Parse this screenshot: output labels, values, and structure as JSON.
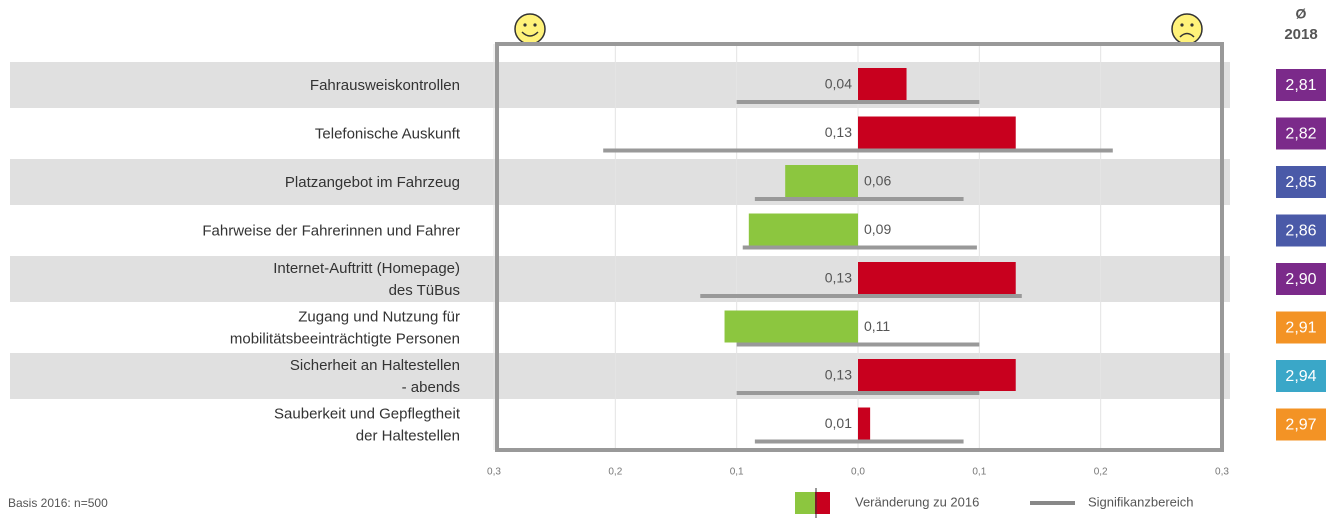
{
  "chart_data": {
    "type": "diverging_bar",
    "categories": [
      "Fahrausweiskontrollen",
      "Telefonische Auskunft",
      "Platzangebot im Fahrzeug",
      "Fahrweise der Fahrerinnen und Fahrer",
      "Internet-Auftritt (Homepage)\ndes TüBus",
      "Zugang und Nutzung für\nmobilitätsbeeinträchtigte Personen",
      "Sicherheit an Haltestellen\n- abends",
      "Sauberkeit und Gepflegtheit\nder Haltestellen"
    ],
    "values": [
      0.04,
      0.13,
      -0.06,
      -0.09,
      0.13,
      -0.11,
      0.13,
      0.01
    ],
    "value_labels": [
      "0,04",
      "0,13",
      "0,06",
      "0,09",
      "0,13",
      "0,11",
      "0,13",
      "0,01"
    ],
    "sig_low": [
      -0.1,
      -0.21,
      -0.085,
      -0.095,
      -0.13,
      -0.1,
      -0.1,
      -0.085
    ],
    "sig_high": [
      0.1,
      0.21,
      0.087,
      0.098,
      0.135,
      0.1,
      0.1,
      0.087
    ],
    "positive_color": "#c8001e",
    "negative_color": "#8cc63f",
    "sig_color": "#999999",
    "xlim": [
      -0.3,
      0.3
    ],
    "xticks": [
      {
        "value": -0.3,
        "label": "0,3"
      },
      {
        "value": -0.2,
        "label": "0,2"
      },
      {
        "value": -0.1,
        "label": "0,1"
      },
      {
        "value": 0,
        "label": "0,0"
      },
      {
        "value": 0.1,
        "label": "0,1"
      },
      {
        "value": 0.2,
        "label": "0,2"
      },
      {
        "value": 0.3,
        "label": "0,3"
      }
    ],
    "grid": true,
    "badge_title": "Ø",
    "badge_subtitle": "2018",
    "badges": [
      2.81,
      2.82,
      2.85,
      2.86,
      2.9,
      2.91,
      2.94,
      2.97
    ],
    "badge_labels": [
      "2,81",
      "2,82",
      "2,85",
      "2,86",
      "2,90",
      "2,91",
      "2,94",
      "2,97"
    ],
    "badge_colors": [
      "#7b2a8a",
      "#7b2a8a",
      "#4a5aa8",
      "#4a5aa8",
      "#7b2a8a",
      "#f39325",
      "#3aa7c8",
      "#f39325"
    ],
    "legend": [
      "Veränderung zu 2016",
      "Signifikanzbereich"
    ],
    "footnote": "Basis 2016: n=500"
  }
}
